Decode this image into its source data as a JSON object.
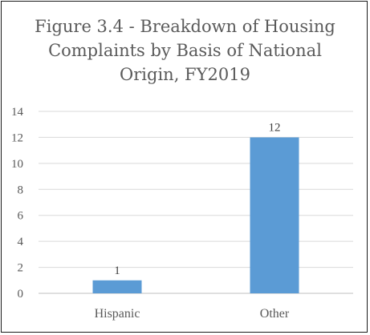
{
  "chart_data": {
    "type": "bar",
    "title_lines": [
      "Figure 3.4 - Breakdown of Housing",
      "Complaints by Basis of National",
      "Origin, FY2019"
    ],
    "categories": [
      "Hispanic",
      "Other"
    ],
    "values": [
      1,
      12
    ],
    "data_labels": [
      "1",
      "12"
    ],
    "xlabel": "",
    "ylabel": "",
    "ylim": [
      0,
      14
    ],
    "yticks": [
      0,
      2,
      4,
      6,
      8,
      10,
      12,
      14
    ],
    "ytick_labels": [
      "0",
      "2",
      "4",
      "6",
      "8",
      "10",
      "12",
      "14"
    ],
    "grid": true,
    "legend": "none",
    "colors": {
      "bar": "#5b9bd5",
      "grid": "#d9d9d9",
      "text": "#595959"
    }
  }
}
